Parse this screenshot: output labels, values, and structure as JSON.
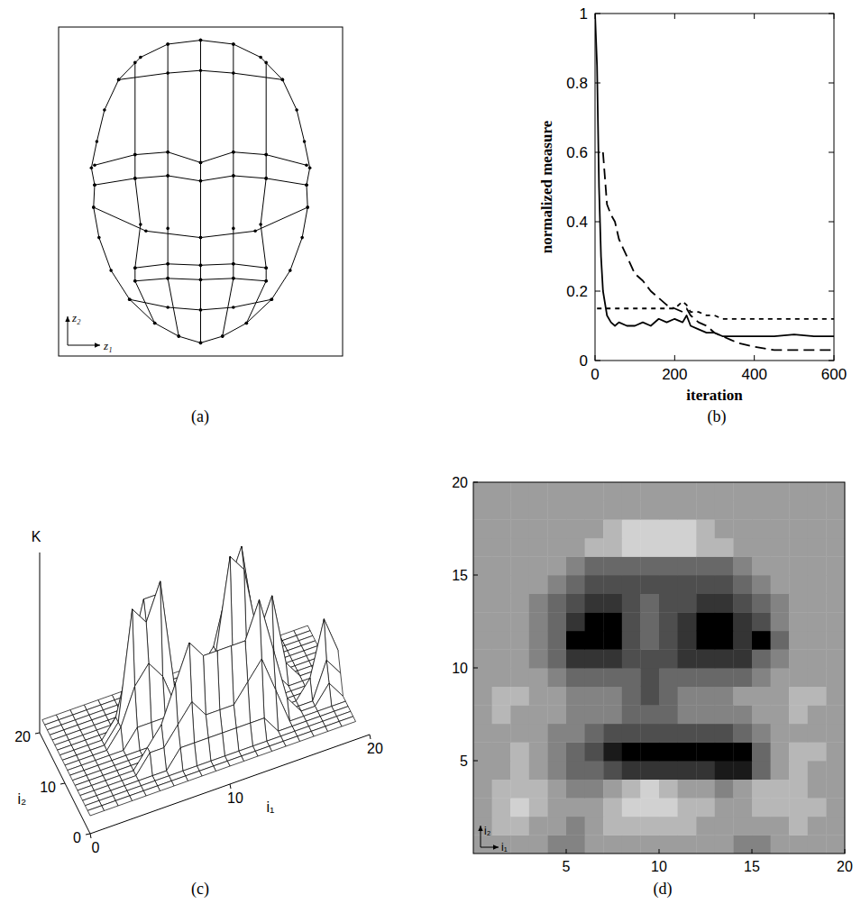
{
  "chart_data": [
    {
      "type": "line",
      "label": "(a)",
      "xlabel": "z₁",
      "ylabel": "z₂",
      "xlim": [
        -1.3,
        1.3
      ],
      "ylim": [
        -1.25,
        1.25
      ],
      "tick_labels": false,
      "marker": "dot",
      "color": "#000000",
      "series": [
        {
          "x": [
            0,
            0.3,
            0.55,
            0.75,
            0.88,
            0.95,
            1.0,
            0.97,
            0.98,
            0.93,
            0.82,
            0.65,
            0.42,
            0.2,
            0,
            -0.2,
            -0.42,
            -0.65,
            -0.82,
            -0.93,
            -0.98,
            -0.97,
            -1.0,
            -0.95,
            -0.88,
            -0.75,
            -0.55,
            -0.3,
            0
          ],
          "values": [
            1.15,
            1.12,
            1.02,
            0.85,
            0.62,
            0.38,
            0.18,
            0.05,
            -0.12,
            -0.35,
            -0.6,
            -0.82,
            -1.0,
            -1.1,
            -1.15,
            -1.1,
            -1.0,
            -0.82,
            -0.6,
            -0.35,
            -0.12,
            0.05,
            0.18,
            0.38,
            0.62,
            0.85,
            1.02,
            1.12,
            1.15
          ]
        },
        {
          "x": [
            -0.75,
            -0.3,
            0,
            0.3,
            0.75
          ],
          "values": [
            0.85,
            0.9,
            0.92,
            0.9,
            0.85
          ]
        },
        {
          "x": [
            -0.97,
            -0.6,
            -0.3,
            0,
            0.3,
            0.6,
            0.97
          ],
          "values": [
            0.2,
            0.28,
            0.3,
            0.22,
            0.3,
            0.28,
            0.2
          ]
        },
        {
          "x": [
            -0.97,
            -0.6,
            -0.3,
            0,
            0.3,
            0.6,
            0.97
          ],
          "values": [
            0.05,
            0.1,
            0.12,
            0.08,
            0.12,
            0.1,
            0.05
          ]
        },
        {
          "x": [
            -0.98,
            -0.5,
            0,
            0.5,
            0.98
          ],
          "values": [
            -0.12,
            -0.3,
            -0.35,
            -0.3,
            -0.12
          ]
        },
        {
          "x": [
            -0.6,
            -0.3,
            0,
            0.3,
            0.6
          ],
          "values": [
            -0.58,
            -0.55,
            -0.56,
            -0.55,
            -0.58
          ]
        },
        {
          "x": [
            -0.6,
            -0.3,
            0,
            0.3,
            0.6
          ],
          "values": [
            -0.68,
            -0.66,
            -0.67,
            -0.66,
            -0.68
          ]
        },
        {
          "x": [
            -0.65,
            -0.3,
            0,
            0.3,
            0.65
          ],
          "values": [
            -0.82,
            -0.88,
            -0.9,
            -0.88,
            -0.82
          ]
        },
        {
          "x": [
            0,
            0,
            0,
            0,
            0,
            0,
            0
          ],
          "values": [
            1.15,
            0.22,
            0.08,
            -0.35,
            -0.56,
            -0.67,
            -1.15
          ]
        },
        {
          "x": [
            -0.3,
            -0.3,
            -0.3,
            -0.3,
            -0.3,
            -0.3,
            -0.2
          ],
          "values": [
            1.12,
            0.3,
            0.12,
            -0.28,
            -0.55,
            -0.66,
            -1.1
          ]
        },
        {
          "x": [
            0.3,
            0.3,
            0.3,
            0.3,
            0.3,
            0.3,
            0.2
          ],
          "values": [
            1.12,
            0.3,
            0.12,
            -0.28,
            -0.55,
            -0.66,
            -1.1
          ]
        },
        {
          "x": [
            -0.6,
            -0.6,
            -0.6,
            -0.55,
            -0.6,
            -0.6,
            -0.42
          ],
          "values": [
            0.98,
            0.28,
            0.1,
            -0.25,
            -0.58,
            -0.68,
            -1.0
          ]
        },
        {
          "x": [
            0.6,
            0.6,
            0.6,
            0.55,
            0.6,
            0.6,
            0.42
          ],
          "values": [
            0.98,
            0.28,
            0.1,
            -0.25,
            -0.58,
            -0.68,
            -1.0
          ]
        }
      ]
    },
    {
      "type": "line",
      "label": "(b)",
      "xlabel": "iteration",
      "ylabel": "normalized measure",
      "x": [
        0,
        5,
        10,
        15,
        20,
        30,
        40,
        50,
        60,
        80,
        100,
        120,
        140,
        160,
        180,
        200,
        220,
        230,
        240,
        260,
        280,
        300,
        320,
        340,
        360,
        400,
        450,
        500,
        550,
        600
      ],
      "xlim": [
        0,
        600
      ],
      "xticks": [
        0,
        200,
        400,
        600
      ],
      "ylim": [
        0,
        1
      ],
      "yticks": [
        0,
        0.2,
        0.4,
        0.6,
        0.8,
        1
      ],
      "series": [
        {
          "line_style": "solid",
          "color": "#000000",
          "values": [
            1,
            0.85,
            0.5,
            0.3,
            0.2,
            0.13,
            0.11,
            0.1,
            0.11,
            0.1,
            0.1,
            0.11,
            0.1,
            0.12,
            0.11,
            0.12,
            0.11,
            0.13,
            0.1,
            0.09,
            0.08,
            0.08,
            0.07,
            0.07,
            0.07,
            0.07,
            0.07,
            0.075,
            0.07,
            0.07
          ]
        },
        {
          "line_style": "long-dash",
          "color": "#000000",
          "values": [
            null,
            null,
            null,
            null,
            0.6,
            0.45,
            0.42,
            0.4,
            0.35,
            0.3,
            0.25,
            0.23,
            0.2,
            0.18,
            0.16,
            0.15,
            0.14,
            0.15,
            0.13,
            0.11,
            0.1,
            0.08,
            0.07,
            0.06,
            0.05,
            0.04,
            0.03,
            0.03,
            0.03,
            0.03
          ]
        },
        {
          "line_style": "short-dash",
          "color": "#000000",
          "values": [
            null,
            0.15,
            0.15,
            0.15,
            0.15,
            0.15,
            0.15,
            0.15,
            0.15,
            0.15,
            0.15,
            0.15,
            0.15,
            0.15,
            0.15,
            0.15,
            0.17,
            0.16,
            0.14,
            0.14,
            0.13,
            0.13,
            0.12,
            0.12,
            0.12,
            0.12,
            0.12,
            0.12,
            0.12,
            0.12
          ]
        }
      ]
    },
    {
      "type": "surface",
      "label": "(c)",
      "xlabel": "i₁",
      "ylabel": "i₂",
      "zlabel": "K",
      "xlim": [
        0,
        20
      ],
      "xticks": [
        0,
        10,
        20
      ],
      "ylim": [
        0,
        20
      ],
      "yticks": [
        0,
        10,
        20
      ],
      "zlim": [
        0,
        10
      ],
      "cells": [
        [
          1,
          1,
          1,
          1,
          1,
          1,
          1,
          1,
          1,
          1,
          1,
          1,
          1,
          1,
          1,
          1,
          1,
          1,
          1,
          1
        ],
        [
          1,
          1,
          1,
          1,
          1,
          1,
          1,
          1,
          1,
          1,
          1,
          1,
          1,
          1,
          1,
          1,
          1,
          1,
          1,
          1
        ],
        [
          1,
          1,
          1,
          1,
          1,
          1,
          1,
          1,
          1,
          1,
          1,
          1,
          1,
          1,
          1,
          1,
          1,
          1,
          1,
          1
        ],
        [
          1,
          1,
          1,
          1,
          1,
          1,
          1,
          2,
          2,
          2,
          2,
          2,
          2,
          2,
          1,
          1,
          1,
          1,
          1,
          1
        ],
        [
          1,
          1,
          1,
          1,
          1,
          2,
          2,
          3,
          4,
          3,
          3,
          3,
          4,
          5,
          3,
          1,
          1,
          1,
          1,
          1
        ],
        [
          1,
          1,
          1,
          1,
          1,
          2,
          3,
          5,
          7,
          6,
          6,
          6,
          6,
          8,
          5,
          2,
          1,
          1,
          2,
          1
        ],
        [
          1,
          1,
          1,
          1,
          1,
          1,
          2,
          3,
          3,
          3,
          3,
          3,
          3,
          3,
          2,
          1,
          1,
          1,
          3,
          2
        ],
        [
          1,
          1,
          1,
          1,
          1,
          1,
          1,
          1,
          2,
          2,
          2,
          1,
          1,
          1,
          1,
          1,
          1,
          2,
          5,
          3
        ],
        [
          1,
          1,
          1,
          1,
          1,
          1,
          1,
          1,
          2,
          3,
          2,
          1,
          1,
          1,
          1,
          1,
          1,
          1,
          2,
          1
        ],
        [
          1,
          1,
          1,
          1,
          1,
          2,
          2,
          2,
          2,
          2,
          2,
          2,
          2,
          2,
          2,
          1,
          1,
          1,
          1,
          1
        ],
        [
          1,
          1,
          1,
          1,
          2,
          4,
          5,
          4,
          2,
          2,
          2,
          3,
          4,
          4,
          3,
          2,
          1,
          1,
          1,
          1
        ],
        [
          1,
          1,
          1,
          1,
          2,
          8,
          7,
          9,
          3,
          2,
          3,
          4,
          9,
          8,
          4,
          6,
          2,
          1,
          1,
          1
        ],
        [
          1,
          1,
          1,
          1,
          2,
          5,
          8,
          8,
          3,
          2,
          3,
          4,
          7,
          9,
          4,
          3,
          1,
          1,
          1,
          1
        ],
        [
          1,
          1,
          1,
          1,
          1,
          3,
          4,
          4,
          2,
          2,
          2,
          3,
          4,
          4,
          3,
          2,
          1,
          1,
          1,
          1
        ],
        [
          1,
          1,
          1,
          1,
          1,
          2,
          2,
          2,
          2,
          2,
          2,
          2,
          2,
          2,
          2,
          1,
          1,
          1,
          1,
          1
        ],
        [
          1,
          1,
          1,
          1,
          1,
          1,
          1,
          1,
          1,
          1,
          1,
          1,
          1,
          1,
          1,
          1,
          1,
          1,
          1,
          1
        ],
        [
          1,
          1,
          1,
          1,
          1,
          1,
          1,
          1,
          1,
          1,
          1,
          1,
          1,
          1,
          1,
          1,
          1,
          1,
          1,
          1
        ],
        [
          1,
          1,
          1,
          1,
          1,
          1,
          1,
          1,
          1,
          1,
          1,
          1,
          1,
          1,
          1,
          1,
          1,
          1,
          1,
          1
        ],
        [
          1,
          1,
          1,
          1,
          1,
          1,
          1,
          1,
          1,
          1,
          1,
          1,
          1,
          1,
          1,
          1,
          1,
          1,
          1,
          1
        ],
        [
          1,
          1,
          1,
          1,
          1,
          1,
          1,
          1,
          1,
          1,
          1,
          1,
          1,
          1,
          1,
          1,
          1,
          1,
          1,
          1
        ]
      ]
    },
    {
      "type": "heatmap",
      "label": "(d)",
      "xlabel": "i₁",
      "ylabel": "i₂",
      "xlim": [
        0,
        20
      ],
      "xticks": [
        5,
        10,
        15,
        20
      ],
      "ylim": [
        0,
        20
      ],
      "yticks": [
        5,
        10,
        15,
        20
      ],
      "cells": [
        [
          3,
          3,
          3,
          3,
          4,
          4,
          3,
          3,
          3,
          3,
          3,
          3,
          3,
          3,
          4,
          4,
          3,
          3,
          3,
          3
        ],
        [
          3,
          2,
          2,
          3,
          3,
          4,
          3,
          2,
          2,
          2,
          2,
          2,
          3,
          3,
          3,
          3,
          3,
          2,
          3,
          3
        ],
        [
          3,
          2,
          1,
          2,
          3,
          3,
          3,
          2,
          1,
          1,
          1,
          2,
          2,
          3,
          3,
          2,
          2,
          2,
          2,
          3
        ],
        [
          3,
          2,
          2,
          2,
          3,
          4,
          4,
          3,
          2,
          1,
          2,
          3,
          3,
          4,
          3,
          2,
          2,
          2,
          3,
          3
        ],
        [
          3,
          3,
          2,
          3,
          4,
          5,
          5,
          6,
          7,
          7,
          7,
          7,
          7,
          8,
          8,
          5,
          3,
          2,
          3,
          3
        ],
        [
          3,
          3,
          2,
          3,
          4,
          5,
          6,
          8,
          9,
          9,
          9,
          9,
          9,
          9,
          9,
          5,
          3,
          2,
          2,
          3
        ],
        [
          3,
          3,
          3,
          3,
          4,
          4,
          5,
          6,
          6,
          6,
          6,
          6,
          6,
          6,
          5,
          4,
          3,
          3,
          3,
          3
        ],
        [
          3,
          2,
          3,
          3,
          3,
          4,
          4,
          4,
          5,
          5,
          5,
          4,
          4,
          4,
          4,
          3,
          3,
          2,
          3,
          3
        ],
        [
          3,
          2,
          2,
          3,
          3,
          4,
          4,
          4,
          5,
          6,
          5,
          4,
          4,
          4,
          3,
          3,
          3,
          2,
          2,
          3
        ],
        [
          3,
          3,
          3,
          3,
          4,
          5,
          5,
          5,
          5,
          6,
          5,
          5,
          5,
          5,
          5,
          4,
          3,
          3,
          3,
          3
        ],
        [
          3,
          3,
          3,
          4,
          5,
          7,
          7,
          7,
          6,
          6,
          6,
          7,
          7,
          7,
          7,
          5,
          4,
          3,
          3,
          3
        ],
        [
          3,
          3,
          3,
          4,
          5,
          9,
          9,
          9,
          6,
          5,
          6,
          7,
          9,
          9,
          7,
          9,
          5,
          3,
          3,
          3
        ],
        [
          3,
          3,
          3,
          4,
          5,
          7,
          9,
          9,
          6,
          5,
          6,
          7,
          9,
          9,
          7,
          6,
          4,
          3,
          3,
          3
        ],
        [
          3,
          3,
          3,
          4,
          5,
          6,
          7,
          7,
          6,
          5,
          6,
          6,
          7,
          7,
          6,
          5,
          4,
          3,
          3,
          3
        ],
        [
          3,
          3,
          3,
          3,
          4,
          5,
          6,
          6,
          6,
          6,
          6,
          6,
          6,
          6,
          5,
          4,
          3,
          3,
          3,
          3
        ],
        [
          3,
          3,
          3,
          3,
          3,
          4,
          5,
          5,
          5,
          5,
          5,
          5,
          5,
          5,
          4,
          3,
          3,
          3,
          3,
          3
        ],
        [
          3,
          3,
          3,
          3,
          3,
          3,
          2,
          2,
          1,
          1,
          1,
          1,
          2,
          2,
          3,
          3,
          3,
          3,
          3,
          3
        ],
        [
          3,
          3,
          3,
          3,
          3,
          3,
          3,
          2,
          1,
          1,
          1,
          1,
          2,
          3,
          3,
          3,
          3,
          3,
          3,
          3
        ],
        [
          3,
          3,
          3,
          3,
          3,
          3,
          3,
          3,
          3,
          3,
          3,
          3,
          3,
          3,
          3,
          3,
          3,
          3,
          3,
          3
        ],
        [
          3,
          3,
          3,
          3,
          3,
          3,
          3,
          3,
          3,
          3,
          3,
          3,
          3,
          3,
          3,
          3,
          3,
          3,
          3,
          3
        ]
      ]
    }
  ]
}
